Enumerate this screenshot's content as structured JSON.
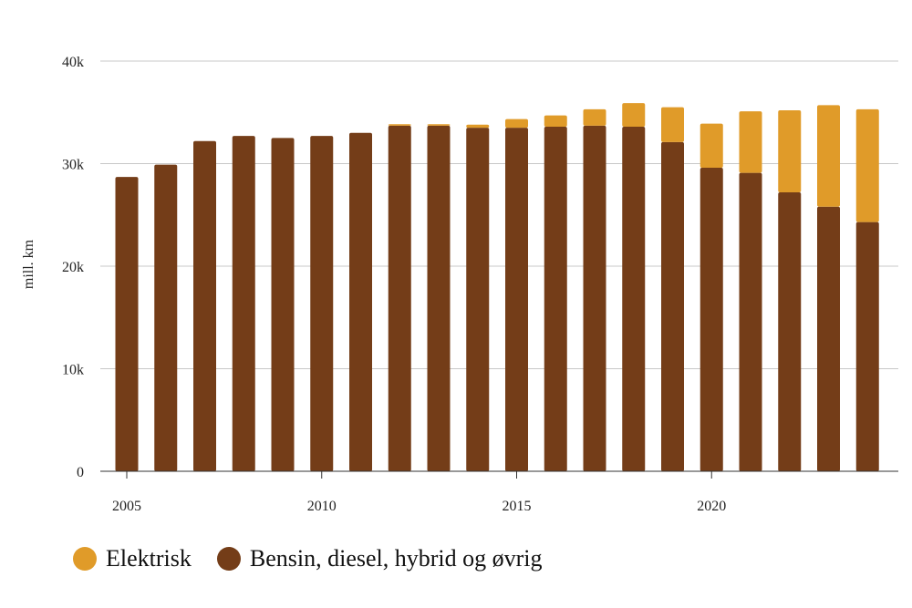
{
  "chart_data": {
    "type": "bar",
    "stacked": true,
    "ylabel": "mill. km",
    "ylim": [
      0,
      40000
    ],
    "yticks": [
      0,
      10000,
      20000,
      30000,
      40000
    ],
    "ytick_labels": [
      "0",
      "10k",
      "20k",
      "30k",
      "40k"
    ],
    "xticks": [
      2005,
      2010,
      2015,
      2020
    ],
    "xtick_labels": [
      "2005",
      "2010",
      "2015",
      "2020"
    ],
    "grid": true,
    "legend_position": "bottom-left",
    "categories": [
      2005,
      2006,
      2007,
      2008,
      2009,
      2010,
      2011,
      2012,
      2013,
      2014,
      2015,
      2016,
      2017,
      2018,
      2019,
      2020,
      2021,
      2022,
      2023,
      2024
    ],
    "series": [
      {
        "name": "Bensin, diesel, hybrid og øvrig",
        "color": "#743d18",
        "values": [
          28700,
          29900,
          32200,
          32700,
          32500,
          32700,
          33000,
          33700,
          33700,
          33500,
          33500,
          33600,
          33700,
          33600,
          32100,
          29600,
          29100,
          27200,
          25800,
          24300
        ]
      },
      {
        "name": "Elektrisk",
        "color": "#e09b29",
        "values": [
          0,
          0,
          0,
          0,
          0,
          0,
          0,
          150,
          150,
          300,
          850,
          1100,
          1600,
          2300,
          3400,
          4300,
          6000,
          8000,
          9900,
          11000
        ]
      }
    ]
  },
  "legend": {
    "items": [
      {
        "label": "Elektrisk",
        "color": "#e09b29"
      },
      {
        "label": "Bensin, diesel, hybrid og øvrig",
        "color": "#743d18"
      }
    ]
  }
}
